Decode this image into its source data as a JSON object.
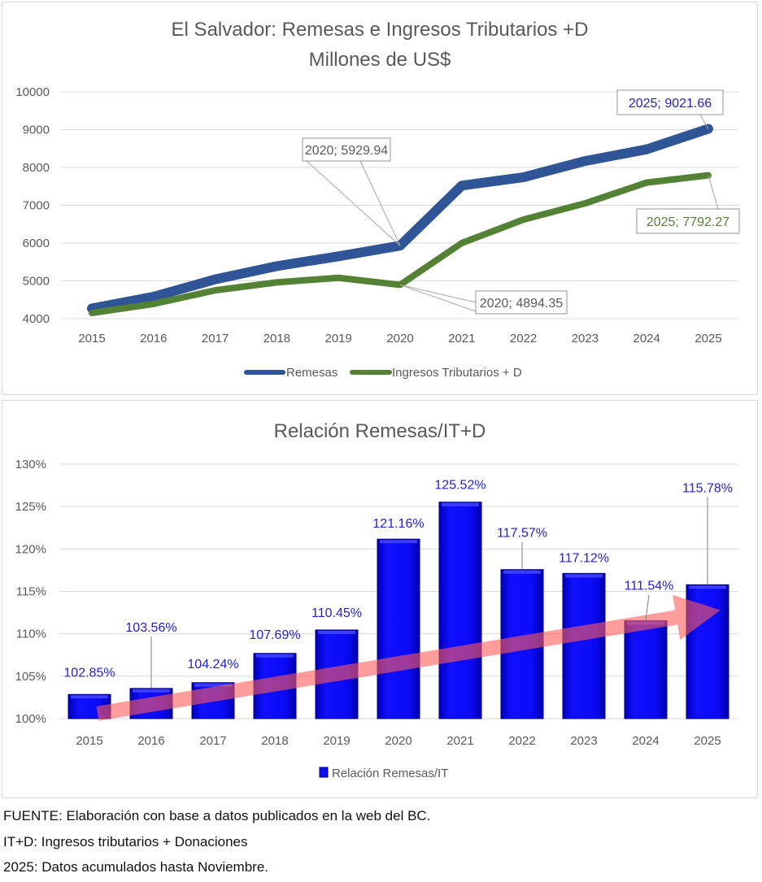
{
  "chart_data": [
    {
      "type": "line",
      "title": "El Salvador:  Remesas e Ingresos Tributarios +D",
      "subtitle": "Millones de US$",
      "x": [
        "2015",
        "2016",
        "2017",
        "2018",
        "2019",
        "2020",
        "2021",
        "2022",
        "2023",
        "2024",
        "2025"
      ],
      "ylim": [
        4000,
        10000
      ],
      "yticks": [
        4000,
        5000,
        6000,
        7000,
        8000,
        9000,
        10000
      ],
      "grid": true,
      "legend_position": "bottom",
      "series": [
        {
          "name": "Remesas",
          "color": "#2f5597",
          "values": [
            4270,
            4580,
            5040,
            5390,
            5650,
            5929.94,
            7520,
            7740,
            8170,
            8480,
            9021.66
          ]
        },
        {
          "name": "Ingresos Tributarios + D",
          "color": "#548235",
          "values": [
            4150,
            4390,
            4750,
            4960,
            5080,
            4894.35,
            6000,
            6620,
            7050,
            7600,
            7792.27
          ]
        }
      ],
      "annotations": [
        {
          "text": "2020; 5929.94",
          "series": 0,
          "index": 5,
          "color": "#595959"
        },
        {
          "text": "2020; 4894.35",
          "series": 1,
          "index": 5,
          "color": "#595959"
        },
        {
          "text": "2025; 9021.66",
          "series": 0,
          "index": 10,
          "color": "#2222cc"
        },
        {
          "text": "2025; 7792.27",
          "series": 1,
          "index": 10,
          "color": "#548235"
        }
      ]
    },
    {
      "type": "bar",
      "title": "Relación Remesas/IT+D",
      "categories": [
        "2015",
        "2016",
        "2017",
        "2018",
        "2019",
        "2020",
        "2021",
        "2022",
        "2023",
        "2024",
        "2025"
      ],
      "ylim": [
        100,
        130
      ],
      "yticks": [
        "100%",
        "105%",
        "110%",
        "115%",
        "120%",
        "125%",
        "130%"
      ],
      "grid": true,
      "legend_position": "bottom",
      "series": [
        {
          "name": "Relación Remesas/IT",
          "color": "#0000ee",
          "values": [
            102.85,
            103.56,
            104.24,
            107.69,
            110.45,
            121.16,
            125.52,
            117.57,
            117.12,
            111.54,
            115.78
          ]
        }
      ],
      "data_labels": [
        "102.85%",
        "103.56%",
        "104.24%",
        "107.69%",
        "110.45%",
        "121.16%",
        "125.52%",
        "117.57%",
        "117.12%",
        "111.54%",
        "115.78%"
      ],
      "trend_arrow": {
        "from": "2015",
        "to": "2025",
        "color": "#ff5a5a"
      }
    }
  ],
  "footer": {
    "line1": "FUENTE:  Elaboración con base a datos publicados en la web del BC.",
    "line2": "IT+D: Ingresos tributarios + Donaciones",
    "line3": "2025:  Datos acumulados hasta Noviembre."
  }
}
